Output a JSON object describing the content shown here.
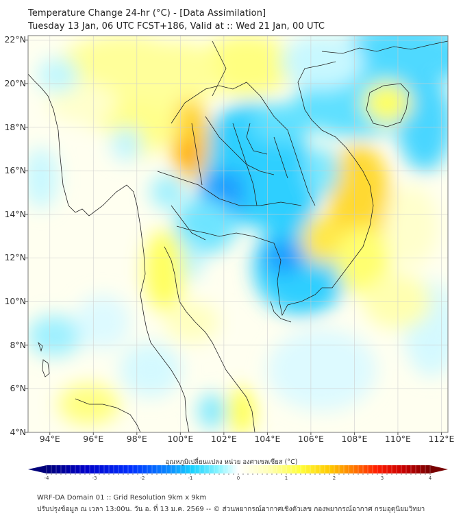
{
  "header": {
    "title": "Temperature Change 24-hr (°C) - [Data Assimilation]",
    "subtitle": "Tuesday 13 Jan, 06 UTC FCST+186, Valid at :: Wed 21 Jan, 00 UTC"
  },
  "map": {
    "lat_labels": [
      "22°N",
      "20°N",
      "18°N",
      "16°N",
      "14°N",
      "12°N",
      "10°N",
      "8°N",
      "6°N",
      "4°N"
    ],
    "lat_values": [
      22,
      20,
      18,
      16,
      14,
      12,
      10,
      8,
      6,
      4
    ],
    "lon_labels": [
      "94°E",
      "96°E",
      "98°E",
      "100°E",
      "102°E",
      "104°E",
      "106°E",
      "108°E",
      "110°E",
      "112°E"
    ],
    "lon_values": [
      94,
      96,
      98,
      100,
      102,
      104,
      106,
      108,
      110,
      112
    ],
    "extent": {
      "lon_min": 93.0,
      "lon_max": 112.3,
      "lat_min": 4.0,
      "lat_max": 22.2
    }
  },
  "colorbar": {
    "label": "อุณหภูมิเปลี่ยนแปลง หน่วย องศาเซลเซียส (°C)",
    "ticks": [
      "-4",
      "-3",
      "-2",
      "-1",
      "0",
      "1",
      "2",
      "3",
      "4"
    ],
    "min": -4,
    "max": 4,
    "colors": [
      "#00007a",
      "#0000c8",
      "#0030ff",
      "#0a8cff",
      "#19d2ff",
      "#8cf5ff",
      "#ffffff",
      "#ffffb4",
      "#ffff3c",
      "#ffc800",
      "#ff7800",
      "#ff1e00",
      "#c80000",
      "#780000"
    ]
  },
  "footer": {
    "line1": "WRF-DA Domain 01 :: Grid Resolution 9km x 9km",
    "line2": "ปรับปรุงข้อมูล ณ เวลา 13:00น. วัน อ. ที่ 13 ม.ค. 2569 -- © ส่วนพยากรณ์อากาศเชิงตัวเลข กองพยากรณ์อากาศ กรมอุตุนิยมวิทยา"
  }
}
